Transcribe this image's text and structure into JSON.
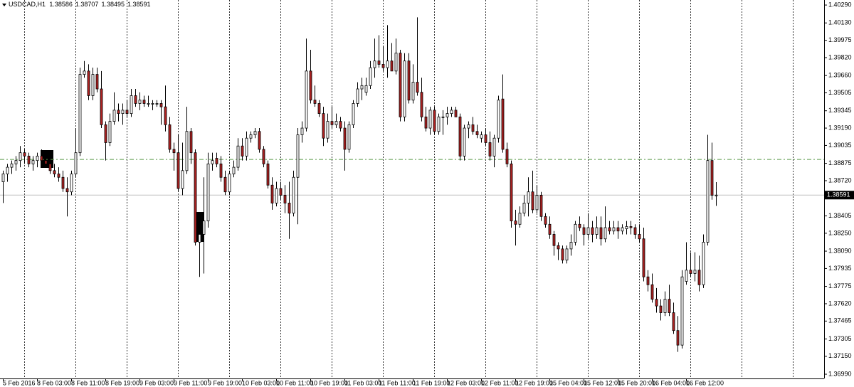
{
  "chart_data": {
    "type": "candlestick",
    "title": "USDCAD,H1",
    "categories": [
      "5 Feb 2016",
      null,
      null,
      null,
      null,
      null,
      null,
      null,
      "8 Feb 03:00",
      null,
      null,
      null,
      null,
      null,
      null,
      null,
      "8 Feb 11:00",
      null,
      null,
      null,
      null,
      null,
      null,
      null,
      "8 Feb 19:00",
      null,
      null,
      null,
      null,
      null,
      null,
      null,
      "9 Feb 03:00",
      null,
      null,
      null,
      null,
      null,
      null,
      null,
      "9 Feb 11:00",
      null,
      null,
      null,
      null,
      null,
      null,
      null,
      "9 Feb 19:00",
      null,
      null,
      null,
      null,
      null,
      null,
      null,
      "10 Feb 03:00",
      null,
      null,
      null,
      null,
      null,
      null,
      null,
      "10 Feb 11:00",
      null,
      null,
      null,
      null,
      null,
      null,
      null,
      "10 Feb 19:00",
      null,
      null,
      null,
      null,
      null,
      null,
      null,
      "11 Feb 03:00",
      null,
      null,
      null,
      null,
      null,
      null,
      null,
      "11 Feb 11:00",
      null,
      null,
      null,
      null,
      null,
      null,
      null,
      "11 Feb 19:00",
      null,
      null,
      null,
      null,
      null,
      null,
      null,
      "12 Feb 03:00",
      null,
      null,
      null,
      null,
      null,
      null,
      null,
      "12 Feb 11:00",
      null,
      null,
      null,
      null,
      null,
      null,
      null,
      "12 Feb 19:00",
      null,
      null,
      null,
      null,
      null,
      null,
      null,
      "15 Feb 04:00",
      null,
      null,
      null,
      null,
      null,
      null,
      null,
      "15 Feb 12:00",
      null,
      null,
      null,
      null,
      null,
      null,
      null,
      "15 Feb 20:00",
      null,
      null,
      null,
      null,
      null,
      null,
      null,
      "16 Feb 04:00",
      null,
      null,
      null,
      null,
      null,
      null,
      null,
      "16 Feb 12:00",
      null,
      null,
      null,
      null,
      null,
      null,
      null
    ],
    "open": [
      1.3871,
      1.3878,
      1.3884,
      1.3887,
      1.389,
      1.3897,
      1.3894,
      1.3887,
      1.389,
      1.3894,
      1.389,
      1.3887,
      1.3881,
      1.3878,
      1.3875,
      1.3865,
      1.3862,
      1.3878,
      1.3897,
      1.3967,
      1.397,
      1.3948,
      1.3967,
      1.3954,
      1.3922,
      1.3906,
      1.3925,
      1.3935,
      1.3932,
      1.3935,
      1.3932,
      1.3948,
      1.3941,
      1.3944,
      1.3941,
      1.3941,
      1.3941,
      1.3941,
      1.3938,
      1.3922,
      1.39,
      1.3897,
      1.3865,
      1.3881,
      1.3916,
      1.3897,
      1.3817,
      1.3824,
      1.3836,
      1.3887,
      1.3892,
      1.3887,
      1.3875,
      1.3862,
      1.3878,
      1.3884,
      1.3903,
      1.3894,
      1.391,
      1.3913,
      1.3916,
      1.39,
      1.3887,
      1.3868,
      1.3852,
      1.3865,
      1.3859,
      1.3852,
      1.3843,
      1.3875,
      1.3913,
      1.3919,
      1.397,
      1.3944,
      1.3941,
      1.3932,
      1.391,
      1.3925,
      1.3922,
      1.3925,
      1.3919,
      1.39,
      1.3922,
      1.3941,
      1.3954,
      1.3951,
      1.3957,
      1.3973,
      1.3979,
      1.3976,
      1.3973,
      1.3979,
      1.397,
      1.3986,
      1.3929,
      1.3979,
      1.3944,
      1.396,
      1.3951,
      1.3929,
      1.3919,
      1.3935,
      1.3916,
      1.3929,
      1.3929,
      1.3932,
      1.3935,
      1.3929,
      1.3894,
      1.3919,
      1.3922,
      1.3916,
      1.391,
      1.3913,
      1.3906,
      1.3894,
      1.391,
      1.3945,
      1.39,
      1.3887,
      1.3836,
      1.3833,
      1.3843,
      1.3852,
      1.3862,
      1.3846,
      1.3859,
      1.384,
      1.3833,
      1.3824,
      1.3814,
      1.3811,
      1.3801,
      1.3811,
      1.3817,
      1.3833,
      1.383,
      1.3824,
      1.383,
      1.3824,
      1.383,
      1.382,
      1.383,
      1.3827,
      1.383,
      1.3827,
      1.3829,
      1.3831,
      1.383,
      1.3824,
      1.382,
      1.3786,
      1.3779,
      1.3766,
      1.376,
      1.3754,
      1.3766,
      1.3754,
      1.3738,
      1.3725,
      1.3782,
      1.3792,
      1.3789,
      1.3792,
      1.3779,
      1.3817,
      1.389,
      1.38586
    ],
    "high": [
      1.3881,
      1.3887,
      1.389,
      1.3894,
      1.3903,
      1.39,
      1.3897,
      1.3894,
      1.3897,
      1.39,
      1.3897,
      1.3894,
      1.3887,
      1.3884,
      1.3881,
      1.3875,
      1.3881,
      1.3919,
      1.3973,
      1.3979,
      1.3976,
      1.3973,
      1.3973,
      1.397,
      1.3925,
      1.3932,
      1.3951,
      1.3941,
      1.3941,
      1.3944,
      1.3954,
      1.3954,
      1.3951,
      1.3948,
      1.3948,
      1.3944,
      1.3944,
      1.3944,
      1.3957,
      1.3929,
      1.3906,
      1.3913,
      1.3906,
      1.3938,
      1.3919,
      1.39,
      1.383,
      1.3875,
      1.3897,
      1.3897,
      1.3897,
      1.3894,
      1.3881,
      1.3881,
      1.389,
      1.391,
      1.391,
      1.3916,
      1.3916,
      1.3919,
      1.3919,
      1.3903,
      1.389,
      1.3875,
      1.3871,
      1.3871,
      1.3868,
      1.3871,
      1.3881,
      1.3919,
      1.3925,
      1.3999,
      1.3989,
      1.3957,
      1.3944,
      1.3938,
      1.3932,
      1.3938,
      1.3932,
      1.3929,
      1.3925,
      1.3925,
      1.3944,
      1.396,
      1.3964,
      1.3964,
      1.3979,
      1.3999,
      1.4002,
      1.3992,
      1.4011,
      1.3995,
      1.3999,
      1.3989,
      1.3986,
      1.3986,
      1.3976,
      1.4018,
      1.3964,
      1.3938,
      1.3938,
      1.3938,
      1.3932,
      1.3935,
      1.3938,
      1.3938,
      1.3938,
      1.3932,
      1.3922,
      1.3925,
      1.3929,
      1.3922,
      1.3916,
      1.3919,
      1.3916,
      1.3913,
      1.3948,
      1.3967,
      1.3906,
      1.389,
      1.3846,
      1.3849,
      1.3859,
      1.3875,
      1.3881,
      1.3868,
      1.3862,
      1.3843,
      1.384,
      1.3827,
      1.3817,
      1.3814,
      1.3814,
      1.3824,
      1.3836,
      1.384,
      1.3833,
      1.3843,
      1.3836,
      1.384,
      1.384,
      1.3849,
      1.3836,
      1.3836,
      1.3836,
      1.3833,
      1.3836,
      1.3836,
      1.3833,
      1.3833,
      1.383,
      1.3792,
      1.3789,
      1.3776,
      1.3766,
      1.3773,
      1.3779,
      1.3763,
      1.3751,
      1.3792,
      1.3817,
      1.3808,
      1.3808,
      1.3805,
      1.3824,
      1.3913,
      1.3906,
      1.38707
    ],
    "low": [
      1.3852,
      1.3871,
      1.3878,
      1.3881,
      1.3884,
      1.3887,
      1.3884,
      1.3881,
      1.3884,
      1.3887,
      1.3884,
      1.3878,
      1.3875,
      1.3871,
      1.3862,
      1.384,
      1.3859,
      1.3875,
      1.3894,
      1.3964,
      1.3944,
      1.3944,
      1.3951,
      1.3919,
      1.389,
      1.3903,
      1.3922,
      1.3925,
      1.3922,
      1.3929,
      1.3929,
      1.3938,
      1.3935,
      1.3938,
      1.3938,
      1.3935,
      1.3938,
      1.3922,
      1.3916,
      1.3897,
      1.3881,
      1.3862,
      1.3859,
      1.3878,
      1.3887,
      1.3814,
      1.3786,
      1.3789,
      1.383,
      1.3881,
      1.3884,
      1.3871,
      1.3859,
      1.3859,
      1.3875,
      1.3881,
      1.389,
      1.389,
      1.3906,
      1.391,
      1.3897,
      1.3884,
      1.3865,
      1.3846,
      1.3849,
      1.3855,
      1.3843,
      1.382,
      1.384,
      1.3833,
      1.3906,
      1.3916,
      1.3941,
      1.3938,
      1.3929,
      1.3903,
      1.3906,
      1.3919,
      1.3919,
      1.3916,
      1.3881,
      1.3897,
      1.3919,
      1.3938,
      1.3944,
      1.3948,
      1.3954,
      1.3964,
      1.3973,
      1.397,
      1.3964,
      1.397,
      1.3967,
      1.3925,
      1.3925,
      1.3941,
      1.3941,
      1.3948,
      1.3925,
      1.3916,
      1.3913,
      1.3913,
      1.3913,
      1.3913,
      1.3922,
      1.3929,
      1.3929,
      1.389,
      1.389,
      1.391,
      1.3913,
      1.391,
      1.3906,
      1.3903,
      1.389,
      1.3884,
      1.3906,
      1.3897,
      1.3884,
      1.383,
      1.3814,
      1.383,
      1.384,
      1.384,
      1.3843,
      1.3843,
      1.3836,
      1.383,
      1.382,
      1.3805,
      1.3801,
      1.3798,
      1.3798,
      1.3805,
      1.3814,
      1.3827,
      1.3814,
      1.382,
      1.3817,
      1.382,
      1.3814,
      1.3817,
      1.3824,
      1.3824,
      1.382,
      1.3824,
      1.3824,
      1.3824,
      1.382,
      1.3817,
      1.3782,
      1.3773,
      1.3763,
      1.3754,
      1.3747,
      1.3751,
      1.3751,
      1.3735,
      1.3719,
      1.3722,
      1.3779,
      1.3786,
      1.3782,
      1.3773,
      1.3776,
      1.3814,
      1.3855,
      1.38495
    ],
    "close": [
      1.3878,
      1.3884,
      1.3887,
      1.389,
      1.3897,
      1.3894,
      1.3887,
      1.389,
      1.3894,
      1.389,
      1.3887,
      1.3881,
      1.3878,
      1.3875,
      1.3865,
      1.3862,
      1.3878,
      1.3897,
      1.3967,
      1.397,
      1.3948,
      1.3967,
      1.3954,
      1.3922,
      1.3906,
      1.3925,
      1.3935,
      1.3932,
      1.3935,
      1.3932,
      1.3948,
      1.3941,
      1.3944,
      1.3941,
      1.3941,
      1.3941,
      1.3941,
      1.3938,
      1.3922,
      1.39,
      1.3897,
      1.3865,
      1.3881,
      1.3916,
      1.3897,
      1.3817,
      1.3824,
      1.3836,
      1.3887,
      1.389,
      1.3887,
      1.3875,
      1.3862,
      1.3878,
      1.3884,
      1.3903,
      1.3894,
      1.391,
      1.3913,
      1.3916,
      1.39,
      1.3887,
      1.3868,
      1.3852,
      1.3865,
      1.3859,
      1.3852,
      1.3843,
      1.3875,
      1.3913,
      1.3919,
      1.397,
      1.3944,
      1.3941,
      1.3932,
      1.391,
      1.3925,
      1.3922,
      1.3925,
      1.3919,
      1.39,
      1.3922,
      1.3941,
      1.3954,
      1.3957,
      1.3957,
      1.3973,
      1.3979,
      1.3976,
      1.3973,
      1.3979,
      1.397,
      1.3986,
      1.3929,
      1.3979,
      1.3944,
      1.396,
      1.3951,
      1.3929,
      1.3919,
      1.3935,
      1.3916,
      1.3929,
      1.3929,
      1.3932,
      1.3935,
      1.3929,
      1.3894,
      1.3919,
      1.3922,
      1.3916,
      1.3913,
      1.3913,
      1.3906,
      1.3894,
      1.391,
      1.3944,
      1.39,
      1.3887,
      1.3836,
      1.3833,
      1.3843,
      1.3852,
      1.3862,
      1.3846,
      1.3859,
      1.384,
      1.3833,
      1.3824,
      1.3814,
      1.3811,
      1.3801,
      1.3811,
      1.3817,
      1.3833,
      1.383,
      1.3824,
      1.383,
      1.3824,
      1.383,
      1.382,
      1.383,
      1.3827,
      1.383,
      1.3827,
      1.383,
      1.3831,
      1.383,
      1.3824,
      1.382,
      1.3786,
      1.3779,
      1.3766,
      1.376,
      1.3754,
      1.3766,
      1.3754,
      1.3738,
      1.3725,
      1.3786,
      1.3792,
      1.3789,
      1.3792,
      1.3779,
      1.3817,
      1.389,
      1.3859,
      1.38591
    ],
    "up_color": "#ffffff",
    "down_color": "#b22222",
    "outline_color": "#000000",
    "level_line": 1.3891,
    "level_color": "#5a9a4a",
    "ylim": [
      1.36952,
      1.40335
    ],
    "yticks": [
      {
        "value": 1.4029,
        "label": "1.40290"
      },
      {
        "value": 1.4013,
        "label": "1.40130"
      },
      1.39975,
      {
        "value": 1.3982,
        "label": "1.39820"
      },
      {
        "value": 1.3966,
        "label": "1.39660"
      },
      1.39505,
      1.39345,
      {
        "value": 1.3919,
        "label": "1.39190"
      },
      1.39035,
      1.38875,
      {
        "value": 1.3872,
        "label": "1.38720"
      },
      1.38405,
      {
        "value": 1.3825,
        "label": "1.38250"
      },
      {
        "value": 1.3809,
        "label": "1.38090"
      },
      1.37935,
      1.37775,
      {
        "value": 1.3762,
        "label": "1.37620"
      },
      1.37465,
      1.37305,
      {
        "value": 1.3715,
        "label": "1.37150"
      },
      {
        "value": 1.3699,
        "label": "1.36990"
      }
    ],
    "grid": true
  }
}
